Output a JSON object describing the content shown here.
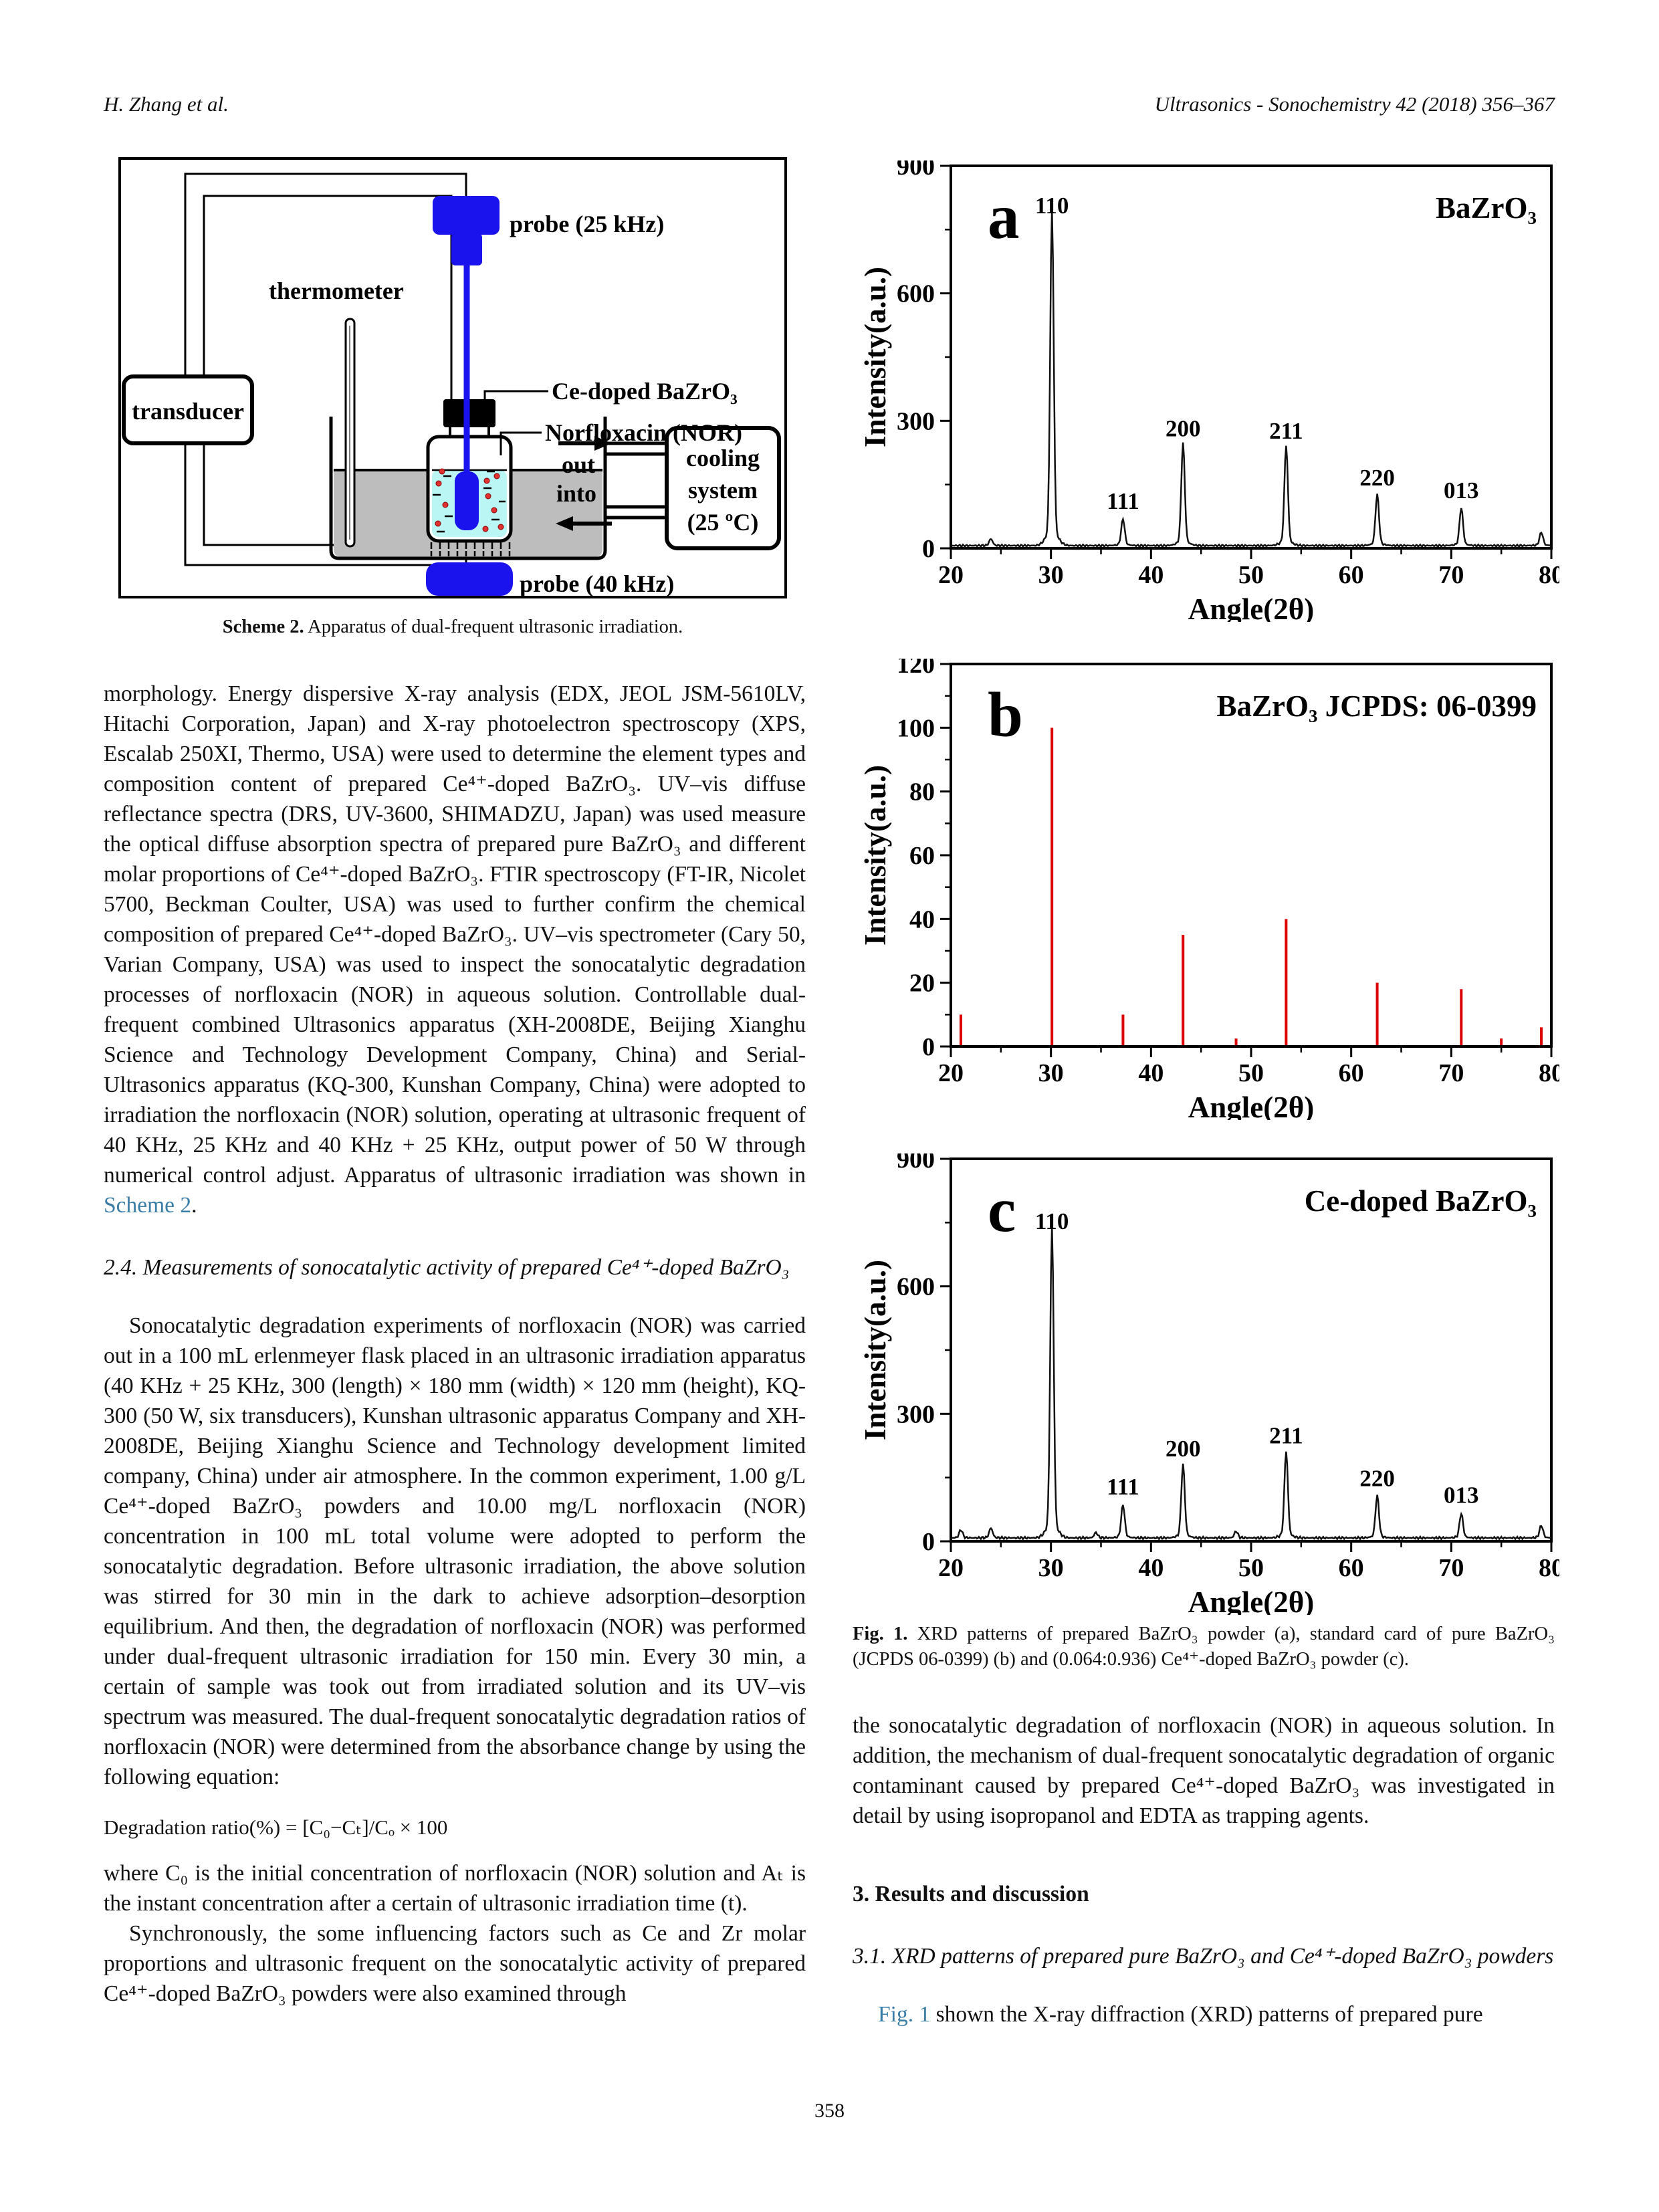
{
  "header": {
    "authors": "H. Zhang et al.",
    "journal": "Ultrasonics - Sonochemistry 42 (2018) 356–367"
  },
  "scheme": {
    "caption_label": "Scheme 2.",
    "caption_text": " Apparatus of dual-frequent ultrasonic irradiation.",
    "labels": {
      "transducer": "transducer",
      "thermometer": "thermometer",
      "probe_top": "probe (25 kHz)",
      "probe_bottom": "probe (40 kHz)",
      "ce_doped": "Ce-doped BaZrO₃",
      "norfloxacin": "Norfloxacin (NOR)",
      "out": "out",
      "into": "into",
      "cooling_line1": "cooling",
      "cooling_line2": "system",
      "cooling_line3": "(25 ºC)"
    },
    "colors": {
      "probe_blue": "#1b13ee",
      "bath_gray": "#bdbdbd",
      "liquid_cyan": "#b9f6f4",
      "particle_red": "#e03030"
    }
  },
  "left_column": {
    "para1_text": "morphology. Energy dispersive X-ray analysis (EDX, JEOL JSM-5610LV, Hitachi Corporation, Japan) and X-ray photoelectron spectroscopy (XPS, Escalab 250XI, Thermo, USA) were used to determine the element types and composition content of prepared Ce⁴⁺-doped BaZrO₃. UV–vis diffuse reflectance spectra (DRS, UV-3600, SHIMADZU, Japan) was used measure the optical diffuse absorption spectra of prepared pure BaZrO₃ and different molar proportions of Ce⁴⁺-doped BaZrO₃. FTIR spectroscopy (FT-IR, Nicolet 5700, Beckman Coulter, USA) was used to further confirm the chemical composition of prepared Ce⁴⁺-doped BaZrO₃. UV–vis spectrometer (Cary 50, Varian Company, USA) was used to inspect the sonocatalytic degradation processes of norfloxacin (NOR) in aqueous solution. Controllable dual-frequent combined Ultrasonics apparatus (XH-2008DE, Beijing Xianghu Science and Technology Development Company, China) and Serial-Ultrasonics apparatus (KQ-300, Kunshan Company, China) were adopted to irradiation the norfloxacin (NOR) solution, operating at ultrasonic frequent of 40 KHz, 25 KHz and 40 KHz + 25 KHz, output power of 50 W through numerical control adjust. Apparatus of ultrasonic irradiation was shown in ",
    "para1_link": "Scheme 2",
    "para1_end": ".",
    "section_24_heading": "2.4. Measurements of sonocatalytic activity of prepared Ce⁴⁺-doped BaZrO₃",
    "para2": "Sonocatalytic degradation experiments of norfloxacin (NOR) was carried out in a 100 mL erlenmeyer flask placed in an ultrasonic irradiation apparatus (40 KHz + 25 KHz, 300 (length) × 180 mm (width) × 120 mm (height), KQ-300 (50 W, six transducers), Kunshan ultrasonic apparatus Company and XH-2008DE, Beijing Xianghu Science and Technology development limited company, China) under air atmosphere. In the common experiment, 1.00 g/L Ce⁴⁺-doped BaZrO₃ powders and 10.00 mg/L norfloxacin (NOR) concentration in 100 mL total volume were adopted to perform the sonocatalytic degradation. Before ultrasonic irradiation, the above solution was stirred for 30 min in the dark to achieve adsorption–desorption equilibrium. And then, the degradation of norfloxacin (NOR) was performed under dual-frequent ultrasonic irradiation for 150 min. Every 30 min, a certain of sample was took out from irradiated solution and its UV–vis spectrum was measured. The dual-frequent sonocatalytic degradation ratios of norfloxacin (NOR) were determined from the absorbance change by using the following equation:",
    "equation": "Degradation ratio(%) = [C₀−Cₜ]/Cₒ × 100",
    "para3": "where C₀ is the initial concentration of norfloxacin (NOR) solution and Aₜ is the instant concentration after a certain of ultrasonic irradiation time (t).",
    "para4": "Synchronously, the some influencing factors such as Ce and Zr molar proportions and ultrasonic frequent on the sonocatalytic activity of prepared Ce⁴⁺-doped BaZrO₃ powders were also examined through"
  },
  "right_column": {
    "fig1_caption_label": "Fig. 1.",
    "fig1_caption_text": " XRD patterns of prepared BaZrO₃ powder (a), standard card of pure BaZrO₃ (JCPDS 06-0399) (b) and (0.064:0.936) Ce⁴⁺-doped BaZrO₃ powder (c).",
    "para1": "the sonocatalytic degradation of norfloxacin (NOR) in aqueous solution. In addition, the mechanism of dual-frequent sonocatalytic degradation of organic contaminant caused by prepared Ce⁴⁺-doped BaZrO₃ was investigated in detail by using isopropanol and EDTA as trapping agents.",
    "section3_heading": "3. Results and discussion",
    "section31_heading": "3.1. XRD patterns of prepared pure BaZrO₃ and Ce⁴⁺-doped BaZrO₃ powders",
    "para2_link": "Fig. 1",
    "para2_rest": " shown the X-ray diffraction (XRD) patterns of prepared pure"
  },
  "footer": {
    "page_number": "358"
  },
  "colors": {
    "link_teal": "#3a7ea8",
    "stick_red": "#dd0000",
    "trace_black": "#111111"
  },
  "chart_data": [
    {
      "type": "line",
      "panel": "a",
      "title": "BaZrO₃",
      "xlabel": "Angle(2θ)",
      "ylabel": "Intensity(a.u.)",
      "xlim": [
        20,
        80
      ],
      "ylim": [
        0,
        900
      ],
      "xticks": [
        20,
        30,
        40,
        50,
        60,
        70,
        80
      ],
      "xminor": [
        25,
        35,
        45,
        55,
        65,
        75
      ],
      "yticks": [
        0,
        300,
        600,
        900
      ],
      "yminor": [
        150,
        450,
        750
      ],
      "baseline": 8,
      "line_color": "#111111",
      "peaks": [
        {
          "two_theta": 30.1,
          "intensity": 755,
          "label": "110"
        },
        {
          "two_theta": 37.2,
          "intensity": 60,
          "label": "111"
        },
        {
          "two_theta": 43.2,
          "intensity": 230,
          "label": "200"
        },
        {
          "two_theta": 53.5,
          "intensity": 225,
          "label": "211"
        },
        {
          "two_theta": 62.6,
          "intensity": 115,
          "label": "220"
        },
        {
          "two_theta": 71.0,
          "intensity": 85,
          "label": "013"
        },
        {
          "two_theta": 24.0,
          "intensity": 15,
          "label": ""
        },
        {
          "two_theta": 79.0,
          "intensity": 30,
          "label": ""
        }
      ],
      "legend": "none",
      "grid": false
    },
    {
      "type": "sticks",
      "panel": "b",
      "title": "BaZrO₃ JCPDS: 06-0399",
      "xlabel": "Angle(2θ)",
      "ylabel": "Intensity(a.u.)",
      "xlim": [
        20,
        80
      ],
      "ylim": [
        0,
        120
      ],
      "xticks": [
        20,
        30,
        40,
        50,
        60,
        70,
        80
      ],
      "xminor": [
        25,
        35,
        45,
        55,
        65,
        75
      ],
      "yticks": [
        0,
        20,
        40,
        60,
        80,
        100,
        120
      ],
      "yminor": [
        10,
        30,
        50,
        70,
        90,
        110
      ],
      "stick_color": "#dd0000",
      "sticks": [
        [
          21.0,
          10
        ],
        [
          30.1,
          100
        ],
        [
          37.2,
          10
        ],
        [
          43.2,
          35
        ],
        [
          48.5,
          2.5
        ],
        [
          53.5,
          40
        ],
        [
          62.6,
          20
        ],
        [
          71.0,
          18
        ],
        [
          75.0,
          2.5
        ],
        [
          79.0,
          6
        ]
      ],
      "legend": "none",
      "grid": false
    },
    {
      "type": "line",
      "panel": "c",
      "title": "Ce-doped BaZrO₃",
      "xlabel": "Angle(2θ)",
      "ylabel": "Intensity(a.u.)",
      "xlim": [
        20,
        80
      ],
      "ylim": [
        0,
        900
      ],
      "xticks": [
        20,
        30,
        40,
        50,
        60,
        70,
        80
      ],
      "xminor": [
        25,
        35,
        45,
        55,
        65,
        75
      ],
      "yticks": [
        0,
        300,
        600,
        900
      ],
      "yminor": [
        150,
        450,
        750
      ],
      "baseline": 10,
      "line_color": "#111111",
      "peaks": [
        {
          "two_theta": 30.1,
          "intensity": 700,
          "label": "110"
        },
        {
          "two_theta": 37.2,
          "intensity": 75,
          "label": "111"
        },
        {
          "two_theta": 43.2,
          "intensity": 165,
          "label": "200"
        },
        {
          "two_theta": 53.5,
          "intensity": 195,
          "label": "211"
        },
        {
          "two_theta": 62.6,
          "intensity": 95,
          "label": "220"
        },
        {
          "two_theta": 71.0,
          "intensity": 55,
          "label": "013"
        },
        {
          "two_theta": 21.0,
          "intensity": 18,
          "label": ""
        },
        {
          "two_theta": 24.0,
          "intensity": 22,
          "label": ""
        },
        {
          "two_theta": 34.5,
          "intensity": 12,
          "label": ""
        },
        {
          "two_theta": 48.5,
          "intensity": 15,
          "label": ""
        },
        {
          "two_theta": 79.0,
          "intensity": 28,
          "label": ""
        }
      ],
      "legend": "none",
      "grid": false
    }
  ]
}
